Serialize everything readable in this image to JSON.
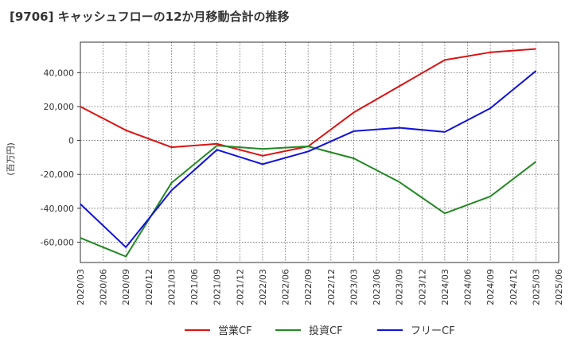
{
  "chart_data": {
    "type": "line",
    "title": "[9706]  キャッシュフローの12か月移動合計の推移",
    "ylabel": "(百万円)",
    "xlabel": "",
    "categories": [
      "2020/03",
      "2020/06",
      "2020/09",
      "2020/12",
      "2021/03",
      "2021/06",
      "2021/09",
      "2021/12",
      "2022/03",
      "2022/06",
      "2022/09",
      "2022/12",
      "2023/03",
      "2023/06",
      "2023/09",
      "2023/12",
      "2024/03",
      "2024/06",
      "2024/09",
      "2024/12",
      "2025/03",
      "2025/06"
    ],
    "ylim": [
      -72000,
      58000
    ],
    "yticks": [
      -60000,
      -40000,
      -20000,
      0,
      20000,
      40000
    ],
    "ytick_labels": [
      "-60,000",
      "-40,000",
      "-20,000",
      "0",
      "20,000",
      "40,000"
    ],
    "grid": true,
    "legend_position": "bottom",
    "series": [
      {
        "name": "営業CF",
        "color": "#dd1111",
        "values": [
          20000,
          null,
          6000,
          null,
          -4000,
          null,
          -2000,
          null,
          -9000,
          null,
          -3500,
          null,
          16500,
          null,
          32000,
          null,
          47500,
          null,
          52000,
          null,
          54000,
          null
        ]
      },
      {
        "name": "投資CF",
        "color": "#228822",
        "values": [
          -57500,
          null,
          -68500,
          null,
          -25000,
          null,
          -3000,
          null,
          -5000,
          null,
          -3500,
          null,
          -10500,
          null,
          -24500,
          null,
          -43000,
          null,
          -33000,
          null,
          -12500,
          null
        ]
      },
      {
        "name": "フリーCF",
        "color": "#1111dd",
        "values": [
          -37500,
          null,
          -63000,
          null,
          -29500,
          null,
          -5500,
          null,
          -14000,
          null,
          -6500,
          null,
          5500,
          null,
          7500,
          null,
          5000,
          null,
          19000,
          null,
          41000,
          null
        ]
      }
    ]
  }
}
